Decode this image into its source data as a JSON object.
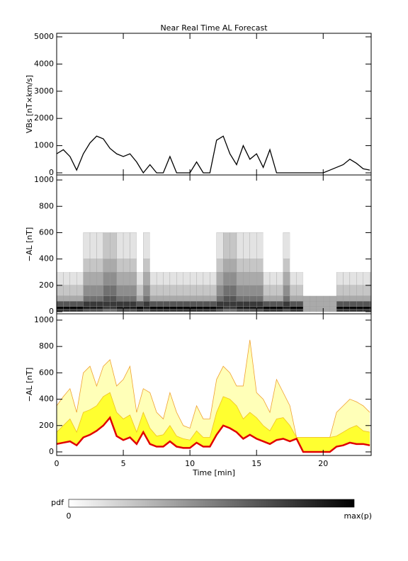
{
  "chart_data": [
    {
      "type": "line",
      "title": "Near Real Time AL Forecast",
      "ylabel": "VBs [nT×km/s]",
      "color": "#000000",
      "x": [
        0,
        0.5,
        1,
        1.5,
        2,
        2.5,
        3,
        3.5,
        4,
        4.5,
        5,
        5.5,
        6,
        6.5,
        7,
        7.5,
        8,
        8.5,
        9,
        9.5,
        10,
        10.5,
        11,
        11.5,
        12,
        12.5,
        13,
        13.5,
        14,
        14.5,
        15,
        15.5,
        16,
        16.5,
        17,
        17.5,
        18,
        18.5,
        19,
        19.5,
        20,
        20.5,
        21,
        21.5,
        22,
        22.5,
        23,
        23.5
      ],
      "values": [
        700,
        850,
        600,
        100,
        700,
        1100,
        1350,
        1250,
        900,
        700,
        600,
        700,
        400,
        0,
        300,
        0,
        0,
        600,
        0,
        0,
        0,
        400,
        0,
        0,
        1200,
        1350,
        700,
        300,
        1000,
        500,
        700,
        200,
        850,
        0,
        0,
        0,
        0,
        0,
        0,
        0,
        0,
        100,
        200,
        300,
        500,
        350,
        150,
        100
      ],
      "xlim": [
        0,
        23.6
      ],
      "xticks": [
        0,
        5,
        10,
        15,
        20
      ],
      "ylim": [
        -78,
        5130
      ],
      "yticks": [
        0,
        1000,
        2000,
        3000,
        4000,
        5000
      ]
    },
    {
      "type": "heatmap",
      "ylabel": "−AL [nT]",
      "xbins": [
        0,
        0.5,
        1,
        1.5,
        2,
        2.5,
        3,
        3.5,
        4,
        4.5,
        5,
        5.5,
        6,
        6.5,
        7,
        7.5,
        8,
        8.5,
        9,
        9.5,
        10,
        10.5,
        11,
        11.5,
        12,
        12.5,
        13,
        13.5,
        14,
        14.5,
        15,
        15.5,
        16,
        16.5,
        17,
        17.5,
        18,
        18.5,
        19,
        19.5,
        20,
        20.5,
        21,
        21.5,
        22,
        22.5,
        23,
        23.5,
        24
      ],
      "ybins": [
        0,
        20,
        40,
        80,
        120,
        200,
        300,
        400,
        600
      ],
      "pdf": [
        [
          7,
          7,
          7,
          7,
          6,
          6,
          6,
          5,
          5,
          6,
          6,
          6,
          7,
          6,
          7,
          7,
          7,
          7,
          7,
          7,
          7,
          7,
          7,
          7,
          6,
          5,
          5,
          6,
          6,
          6,
          6,
          7,
          7,
          7,
          6,
          7,
          7,
          3,
          3,
          3,
          3,
          3,
          7,
          7,
          7,
          7,
          7,
          7
        ],
        [
          9,
          9,
          9,
          9,
          8,
          8,
          8,
          7,
          7,
          8,
          8,
          8,
          9,
          8,
          9,
          9,
          9,
          9,
          9,
          9,
          9,
          9,
          9,
          9,
          8,
          7,
          7,
          8,
          8,
          8,
          8,
          9,
          9,
          9,
          8,
          9,
          9,
          3,
          3,
          3,
          3,
          3,
          9,
          9,
          9,
          9,
          9,
          9
        ],
        [
          6,
          6,
          6,
          6,
          7,
          7,
          7,
          7,
          7,
          7,
          7,
          7,
          6,
          7,
          6,
          6,
          6,
          6,
          6,
          6,
          6,
          6,
          6,
          6,
          7,
          7,
          7,
          7,
          7,
          7,
          7,
          6,
          6,
          6,
          7,
          6,
          6,
          3,
          3,
          3,
          3,
          3,
          6,
          6,
          6,
          6,
          6,
          6
        ],
        [
          3,
          3,
          3,
          3,
          5,
          5,
          5,
          6,
          6,
          5,
          5,
          5,
          3,
          5,
          3,
          3,
          3,
          3,
          3,
          3,
          3,
          3,
          3,
          3,
          5,
          6,
          6,
          5,
          5,
          5,
          5,
          3,
          3,
          3,
          5,
          3,
          3,
          3,
          3,
          3,
          3,
          3,
          3,
          3,
          3,
          3,
          3,
          3
        ],
        [
          2,
          2,
          2,
          2,
          4,
          4,
          4,
          5,
          5,
          4,
          4,
          4,
          2,
          4,
          2,
          2,
          2,
          2,
          2,
          2,
          2,
          2,
          2,
          2,
          4,
          5,
          5,
          4,
          4,
          4,
          4,
          2,
          2,
          2,
          4,
          2,
          2,
          0,
          0,
          0,
          0,
          0,
          2,
          2,
          2,
          2,
          2,
          2
        ],
        [
          1,
          1,
          1,
          1,
          3,
          3,
          3,
          4,
          4,
          3,
          3,
          3,
          1,
          3,
          1,
          1,
          1,
          1,
          1,
          1,
          1,
          1,
          1,
          1,
          3,
          4,
          4,
          3,
          3,
          3,
          3,
          1,
          1,
          1,
          3,
          1,
          1,
          0,
          0,
          0,
          0,
          0,
          1,
          1,
          1,
          1,
          1,
          1
        ],
        [
          0,
          0,
          0,
          0,
          2,
          2,
          2,
          3,
          3,
          2,
          2,
          2,
          0,
          2,
          0,
          0,
          0,
          0,
          0,
          0,
          0,
          0,
          0,
          0,
          2,
          3,
          3,
          2,
          2,
          2,
          2,
          0,
          0,
          0,
          2,
          0,
          0,
          0,
          0,
          0,
          0,
          0,
          0,
          0,
          0,
          0,
          0,
          0
        ],
        [
          0,
          0,
          0,
          0,
          1,
          1,
          1,
          2,
          2,
          1,
          1,
          1,
          0,
          1,
          0,
          0,
          0,
          0,
          0,
          0,
          0,
          0,
          0,
          0,
          1,
          2,
          2,
          1,
          1,
          1,
          1,
          0,
          0,
          0,
          1,
          0,
          0,
          0,
          0,
          0,
          0,
          0,
          0,
          0,
          0,
          0,
          0,
          0
        ]
      ],
      "clim": [
        0,
        9
      ],
      "colorbar": {
        "label": "pdf",
        "min_label": "0",
        "max_label": "max(p)"
      },
      "xlim": [
        0,
        23.6
      ],
      "xticks": [
        0,
        5,
        10,
        15,
        20
      ],
      "ylim": [
        -16,
        1038
      ],
      "yticks": [
        0,
        200,
        400,
        600,
        800,
        1000
      ]
    },
    {
      "type": "area",
      "ylabel": "−AL [nT]",
      "xlabel": "Time [min]",
      "x": [
        0,
        0.5,
        1,
        1.5,
        2,
        2.5,
        3,
        3.5,
        4,
        4.5,
        5,
        5.5,
        6,
        6.5,
        7,
        7.5,
        8,
        8.5,
        9,
        9.5,
        10,
        10.5,
        11,
        11.5,
        12,
        12.5,
        13,
        13.5,
        14,
        14.5,
        15,
        15.5,
        16,
        16.5,
        17,
        17.5,
        18,
        18.5,
        19,
        19.5,
        20,
        20.5,
        21,
        21.5,
        22,
        22.5,
        23,
        23.5
      ],
      "series": [
        {
          "color": "#f0a030",
          "fill": "#ffffb8",
          "values": [
            350,
            420,
            480,
            300,
            600,
            650,
            500,
            650,
            700,
            500,
            550,
            650,
            300,
            480,
            450,
            300,
            250,
            450,
            300,
            200,
            180,
            350,
            250,
            250,
            550,
            650,
            600,
            500,
            500,
            850,
            450,
            400,
            300,
            550,
            450,
            350,
            110,
            110,
            110,
            110,
            110,
            110,
            300,
            350,
            400,
            380,
            350,
            300
          ]
        },
        {
          "color": "#f0c020",
          "fill": "#ffff30",
          "values": [
            150,
            200,
            250,
            150,
            300,
            320,
            350,
            420,
            450,
            300,
            250,
            280,
            150,
            300,
            180,
            120,
            130,
            200,
            120,
            100,
            90,
            160,
            110,
            110,
            300,
            420,
            400,
            350,
            250,
            300,
            260,
            200,
            160,
            250,
            260,
            200,
            110,
            110,
            110,
            110,
            110,
            110,
            120,
            150,
            180,
            200,
            160,
            150
          ]
        },
        {
          "color": "#e00000",
          "fill": "#ffffff",
          "values": [
            60,
            70,
            80,
            50,
            110,
            130,
            160,
            200,
            260,
            120,
            90,
            110,
            60,
            150,
            60,
            40,
            40,
            80,
            40,
            30,
            30,
            70,
            40,
            40,
            130,
            200,
            180,
            150,
            100,
            130,
            100,
            80,
            60,
            90,
            100,
            80,
            100,
            0,
            0,
            0,
            0,
            0,
            40,
            50,
            70,
            60,
            60,
            50
          ]
        }
      ],
      "xlim": [
        0,
        23.6
      ],
      "xticks": [
        0,
        5,
        10,
        15,
        20
      ],
      "ylim": [
        -27,
        1048
      ],
      "yticks": [
        0,
        200,
        400,
        600,
        800,
        1000
      ]
    }
  ]
}
